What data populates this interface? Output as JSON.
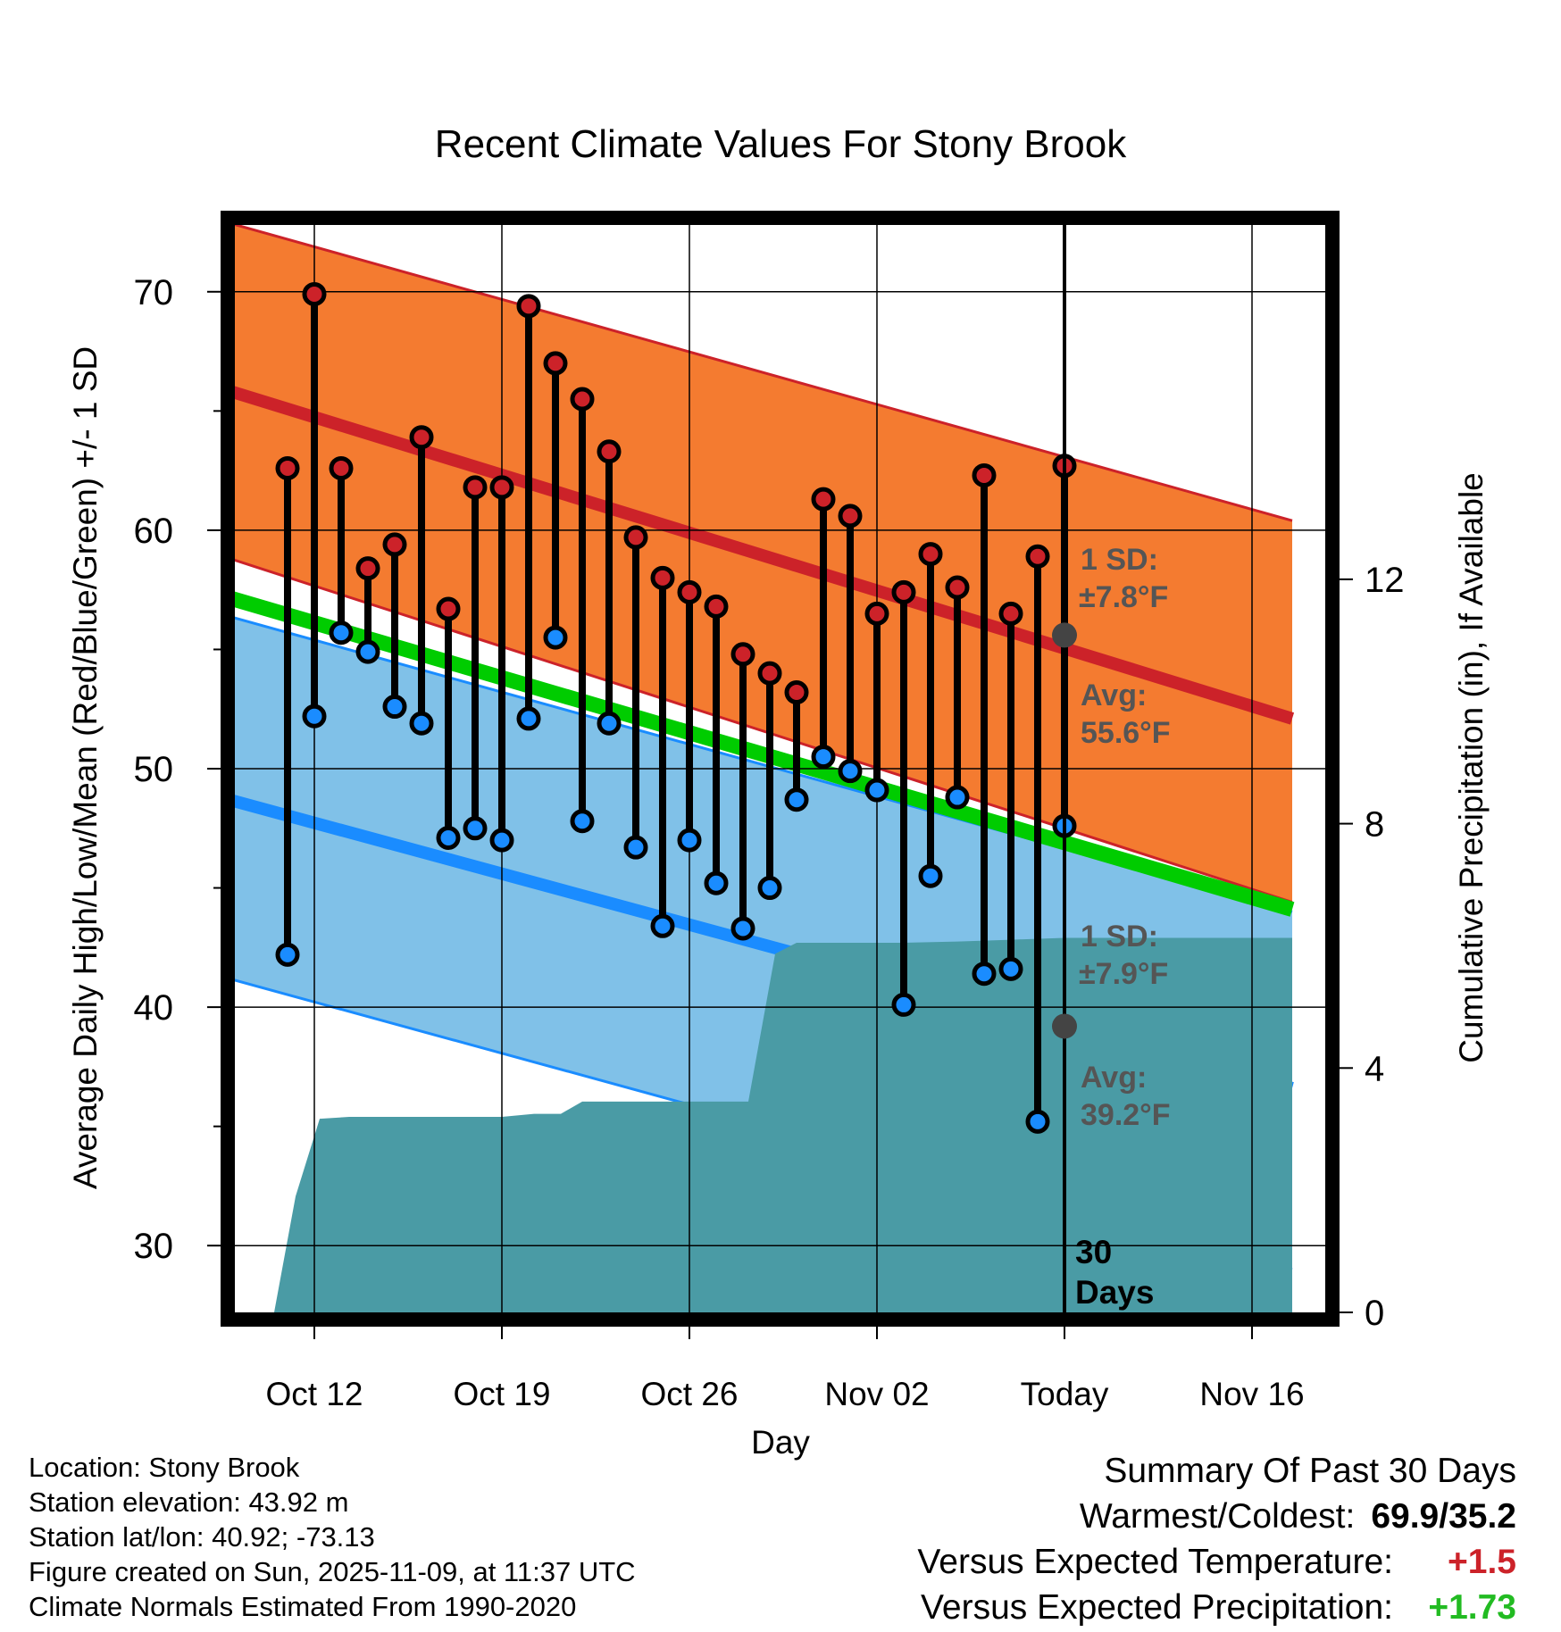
{
  "chart_data": {
    "type": "line",
    "title": "Recent Climate Values For Stony Brook",
    "xlabel": "Day",
    "ylabel_left": "Average Daily High/Low/Mean (Red/Blue/Green) +/- 1 SD",
    "ylabel_right": "Cumulative Precipitation (in), If Available",
    "y_range": [
      27.2,
      72.8
    ],
    "y_ticks": [
      "30",
      "40",
      "50",
      "60",
      "70"
    ],
    "x_range_days": [
      -32.5,
      8.5
    ],
    "x_ticks": [
      {
        "day": -28,
        "label": "Oct 12"
      },
      {
        "day": -21,
        "label": "Oct 19"
      },
      {
        "day": -14,
        "label": "Oct 26"
      },
      {
        "day": -7,
        "label": "Nov 02"
      },
      {
        "day": 0,
        "label": "Today"
      },
      {
        "day": 7,
        "label": "Nov 16"
      }
    ],
    "precip_range": [
      0,
      17.8
    ],
    "precip_ticks": [
      "0",
      "4",
      "8",
      "12"
    ],
    "normals": {
      "high_mean": {
        "start": 66.3,
        "end": 52.1,
        "color": "#cc2229"
      },
      "high_upper": {
        "start": 73.3,
        "end": 60.4
      },
      "high_lower": {
        "start": 59.3,
        "end": 44.4
      },
      "mean": {
        "start": 57.6,
        "end": 44.1,
        "color": "#00cc00"
      },
      "low_mean": {
        "start": 49.1,
        "end": 36.6,
        "color": "#1a8cff"
      },
      "low_upper": {
        "start": 56.8,
        "end": 44.0
      },
      "low_lower": {
        "start": 41.6,
        "end": 29.0
      }
    },
    "series": [
      {
        "name": "Daily High",
        "color": "#cc2229",
        "values": [
          62.6,
          69.9,
          62.6,
          58.4,
          59.4,
          63.9,
          56.7,
          61.8,
          61.8,
          69.4,
          67.0,
          65.5,
          63.3,
          59.7,
          58.0,
          57.4,
          56.8,
          54.8,
          54.0,
          53.2,
          61.3,
          60.6,
          56.5,
          57.4,
          59.0,
          57.6,
          62.3,
          56.5,
          58.9,
          62.7
        ]
      },
      {
        "name": "Daily Low",
        "color": "#1a8cff",
        "values": [
          42.2,
          52.2,
          55.7,
          54.9,
          52.6,
          51.9,
          47.1,
          47.5,
          47.0,
          52.1,
          55.5,
          47.8,
          51.9,
          46.7,
          43.4,
          47.0,
          45.2,
          43.3,
          45.0,
          48.7,
          50.5,
          49.9,
          49.1,
          40.1,
          45.5,
          48.8,
          41.4,
          41.6,
          35.2,
          47.6
        ]
      }
    ],
    "precipitation": {
      "days": [
        -29.5,
        -28.7,
        -27.8,
        -26.7,
        -25.8,
        -21.0,
        -19.8,
        -18.8,
        -18.0,
        -16.9,
        -14.0,
        -11.8,
        -10.8,
        -10.0,
        -8.0,
        -6.0,
        -4.0,
        -2.0,
        0.0,
        2.0,
        5.0,
        8.5
      ],
      "values": [
        0.0,
        1.9,
        3.17,
        3.2,
        3.2,
        3.2,
        3.25,
        3.25,
        3.45,
        3.45,
        3.45,
        3.45,
        5.87,
        6.05,
        6.05,
        6.05,
        6.07,
        6.1,
        6.13,
        6.13,
        6.13,
        6.13
      ],
      "color": "#4a9ba5"
    },
    "today_marker": {
      "day": 0,
      "label_line1": "30",
      "label_line2": "Days"
    },
    "annotations": {
      "high_sd": {
        "line1": "1 SD:",
        "line2": "±7.8°F",
        "avg_line1": "Avg:",
        "avg_line2": "55.6°F",
        "avg_value": 55.6
      },
      "low_sd": {
        "line1": "1 SD:",
        "line2": "±7.9°F",
        "avg_line1": "Avg:",
        "avg_line2": "39.2°F",
        "avg_value": 39.2
      },
      "color": "#555555"
    },
    "colors": {
      "high_band": "#f47b30",
      "low_band": "#80c1e8"
    }
  },
  "footer": {
    "location": "Location: Stony Brook",
    "elevation": "Station elevation: 43.92 m",
    "latlon": "Station lat/lon: 40.92; -73.13",
    "created": "Figure created on Sun, 2025-11-09, at 11:37 UTC",
    "normals": "Climate Normals Estimated From 1990-2020"
  },
  "summary": {
    "title": "Summary Of Past 30 Days",
    "warm_cold_label": "Warmest/Coldest:",
    "warm_cold_value": "69.9/35.2",
    "temp_label": "Versus Expected Temperature:",
    "temp_value": "+1.5",
    "temp_color": "#cc2229",
    "precip_label": "Versus Expected Precipitation:",
    "precip_value": "+1.73",
    "precip_color": "#22bb22"
  }
}
